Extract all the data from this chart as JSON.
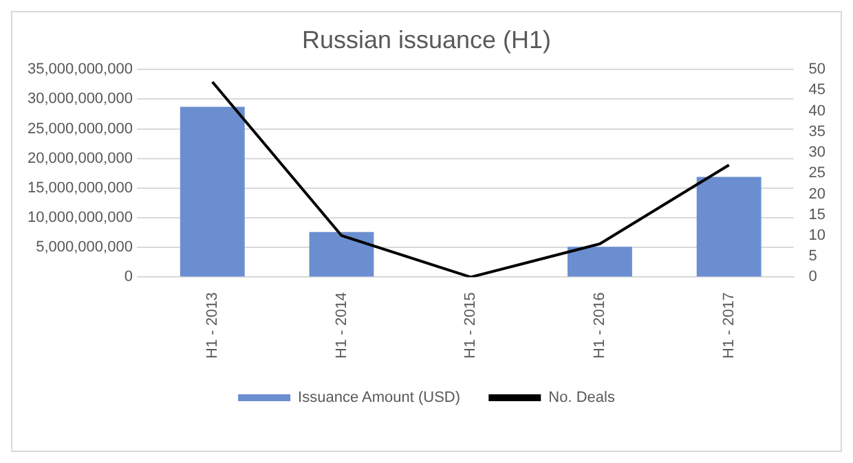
{
  "chart_data": {
    "type": "bar",
    "title": "Russian issuance (H1)",
    "categories": [
      "H1 - 2013",
      "H1 - 2014",
      "H1 - 2015",
      "H1 - 2016",
      "H1 - 2017"
    ],
    "series": [
      {
        "name": "Issuance Amount (USD)",
        "color": "#6a8ed0",
        "values": [
          28700000000,
          7600000000,
          0,
          5100000000,
          16900000000
        ]
      },
      {
        "name": "No. Deals",
        "type": "line",
        "axis": "y2",
        "color": "#000000",
        "values": [
          47,
          10,
          0,
          8,
          27
        ]
      }
    ],
    "ylim": [
      0,
      35000000000
    ],
    "yticks": [
      {
        "value": 0,
        "label": "0"
      },
      {
        "value": 5000000000,
        "label": "5,000,000,000"
      },
      {
        "value": 10000000000,
        "label": "10,000,000,000"
      },
      {
        "value": 15000000000,
        "label": "15,000,000,000"
      },
      {
        "value": 20000000000,
        "label": "20,000,000,000"
      },
      {
        "value": 25000000000,
        "label": "25,000,000,000"
      },
      {
        "value": 30000000000,
        "label": "30,000,000,000"
      },
      {
        "value": 35000000000,
        "label": "35,000,000,000"
      }
    ],
    "y2lim": [
      0,
      50
    ],
    "y2ticks": [
      0,
      5,
      10,
      15,
      20,
      25,
      30,
      35,
      40,
      45,
      50
    ],
    "grid": "y",
    "legend": "bottom",
    "marker": "none"
  }
}
